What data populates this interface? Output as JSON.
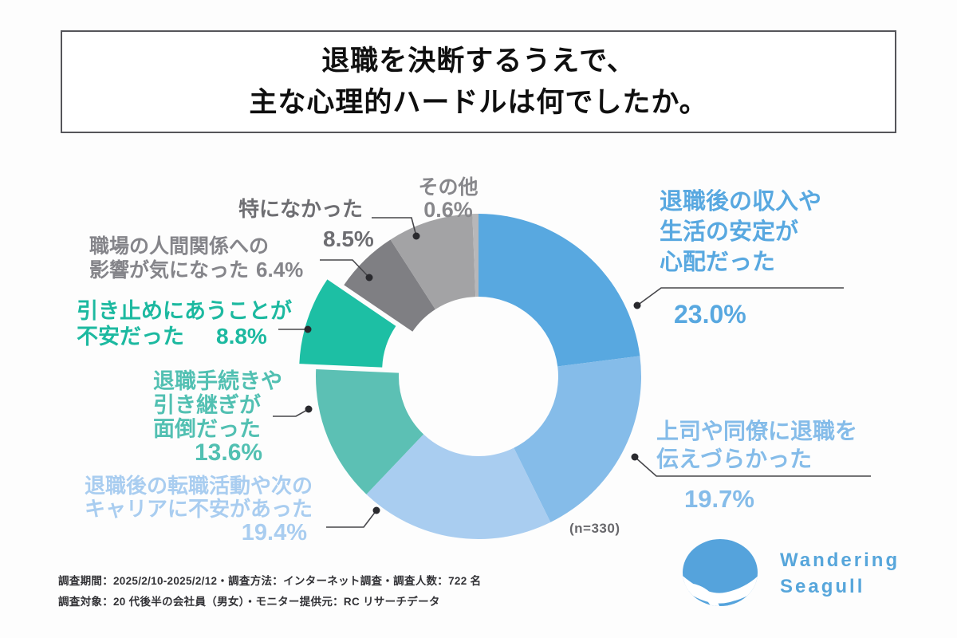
{
  "title": {
    "line1": "退職を決断するうえで、",
    "line2": "主な心理的ハードルは何でしたか。"
  },
  "chart_data": {
    "type": "pie",
    "subtype": "donut",
    "title": "退職を決断するうえで、主な心理的ハードルは何でしたか。",
    "start_angle_deg": 0,
    "direction": "clockwise",
    "inner_radius_ratio": 0.49,
    "n_label": "(n=330)",
    "segments": [
      {
        "label": "退職後の収入や生活の安定が心配だった",
        "value": 23.0,
        "color": "#58a8e0",
        "exploded": false
      },
      {
        "label": "上司や同僚に退職を伝えづらかった",
        "value": 19.7,
        "color": "#85bce9",
        "exploded": false
      },
      {
        "label": "退職後の転職活動や次のキャリアに不安があった",
        "value": 19.4,
        "color": "#a9cdf0",
        "exploded": false
      },
      {
        "label": "退職手続きや引き継ぎが面倒だった",
        "value": 13.6,
        "color": "#5cc0b4",
        "exploded": false
      },
      {
        "label": "引き止めにあうことが不安だった",
        "value": 8.8,
        "color": "#1dbfa4",
        "exploded": true
      },
      {
        "label": "職場の人間関係への影響が気になった",
        "value": 6.4,
        "color": "#7f7f83",
        "exploded": false
      },
      {
        "label": "特になかった",
        "value": 8.5,
        "color": "#a3a3a5",
        "exploded": false
      },
      {
        "label": "その他",
        "value": 0.6,
        "color": "#b7b7b9",
        "exploded": false
      }
    ]
  },
  "callouts": [
    {
      "lines": [
        "退職後の収入や",
        "生活の安定が",
        "心配だった"
      ],
      "pct": "23.0%",
      "color": "#58a8e0"
    },
    {
      "lines": [
        "上司や同僚に退職を",
        "伝えづらかった"
      ],
      "pct": "19.7%",
      "color": "#85bce9"
    },
    {
      "lines": [
        "退職後の転職活動や次の",
        "キャリアに不安があった"
      ],
      "pct": "19.4%",
      "color": "#a9cdf0"
    },
    {
      "lines": [
        "退職手続きや",
        "引き継ぎが",
        "面倒だった"
      ],
      "pct": "13.6%",
      "color": "#52c0b2"
    },
    {
      "lines": [
        "引き止めにあうことが",
        "不安だった"
      ],
      "pct": "8.8%",
      "color": "#1cb9a0"
    },
    {
      "lines": [
        "職場の人間関係への",
        "影響が気になった"
      ],
      "pct": "6.4%",
      "color": "#85858a"
    },
    {
      "lines": [
        "特になかった"
      ],
      "pct": "8.5%",
      "color": "#6e6e72"
    },
    {
      "lines": [
        "その他"
      ],
      "pct": "0.6%",
      "color": "#87878b"
    }
  ],
  "footer": {
    "line1": "調査期間：2025/2/10-2025/2/12・調査方法：インターネット調査・調査人数：722 名",
    "line2": "調査対象：20 代後半の会社員（男女）・モニター提供元：RC リサーチデータ"
  },
  "logo": {
    "line1": "Wandering",
    "line2": "Seagull",
    "color": "#57a6db",
    "mark_color": "#55a3dc"
  }
}
